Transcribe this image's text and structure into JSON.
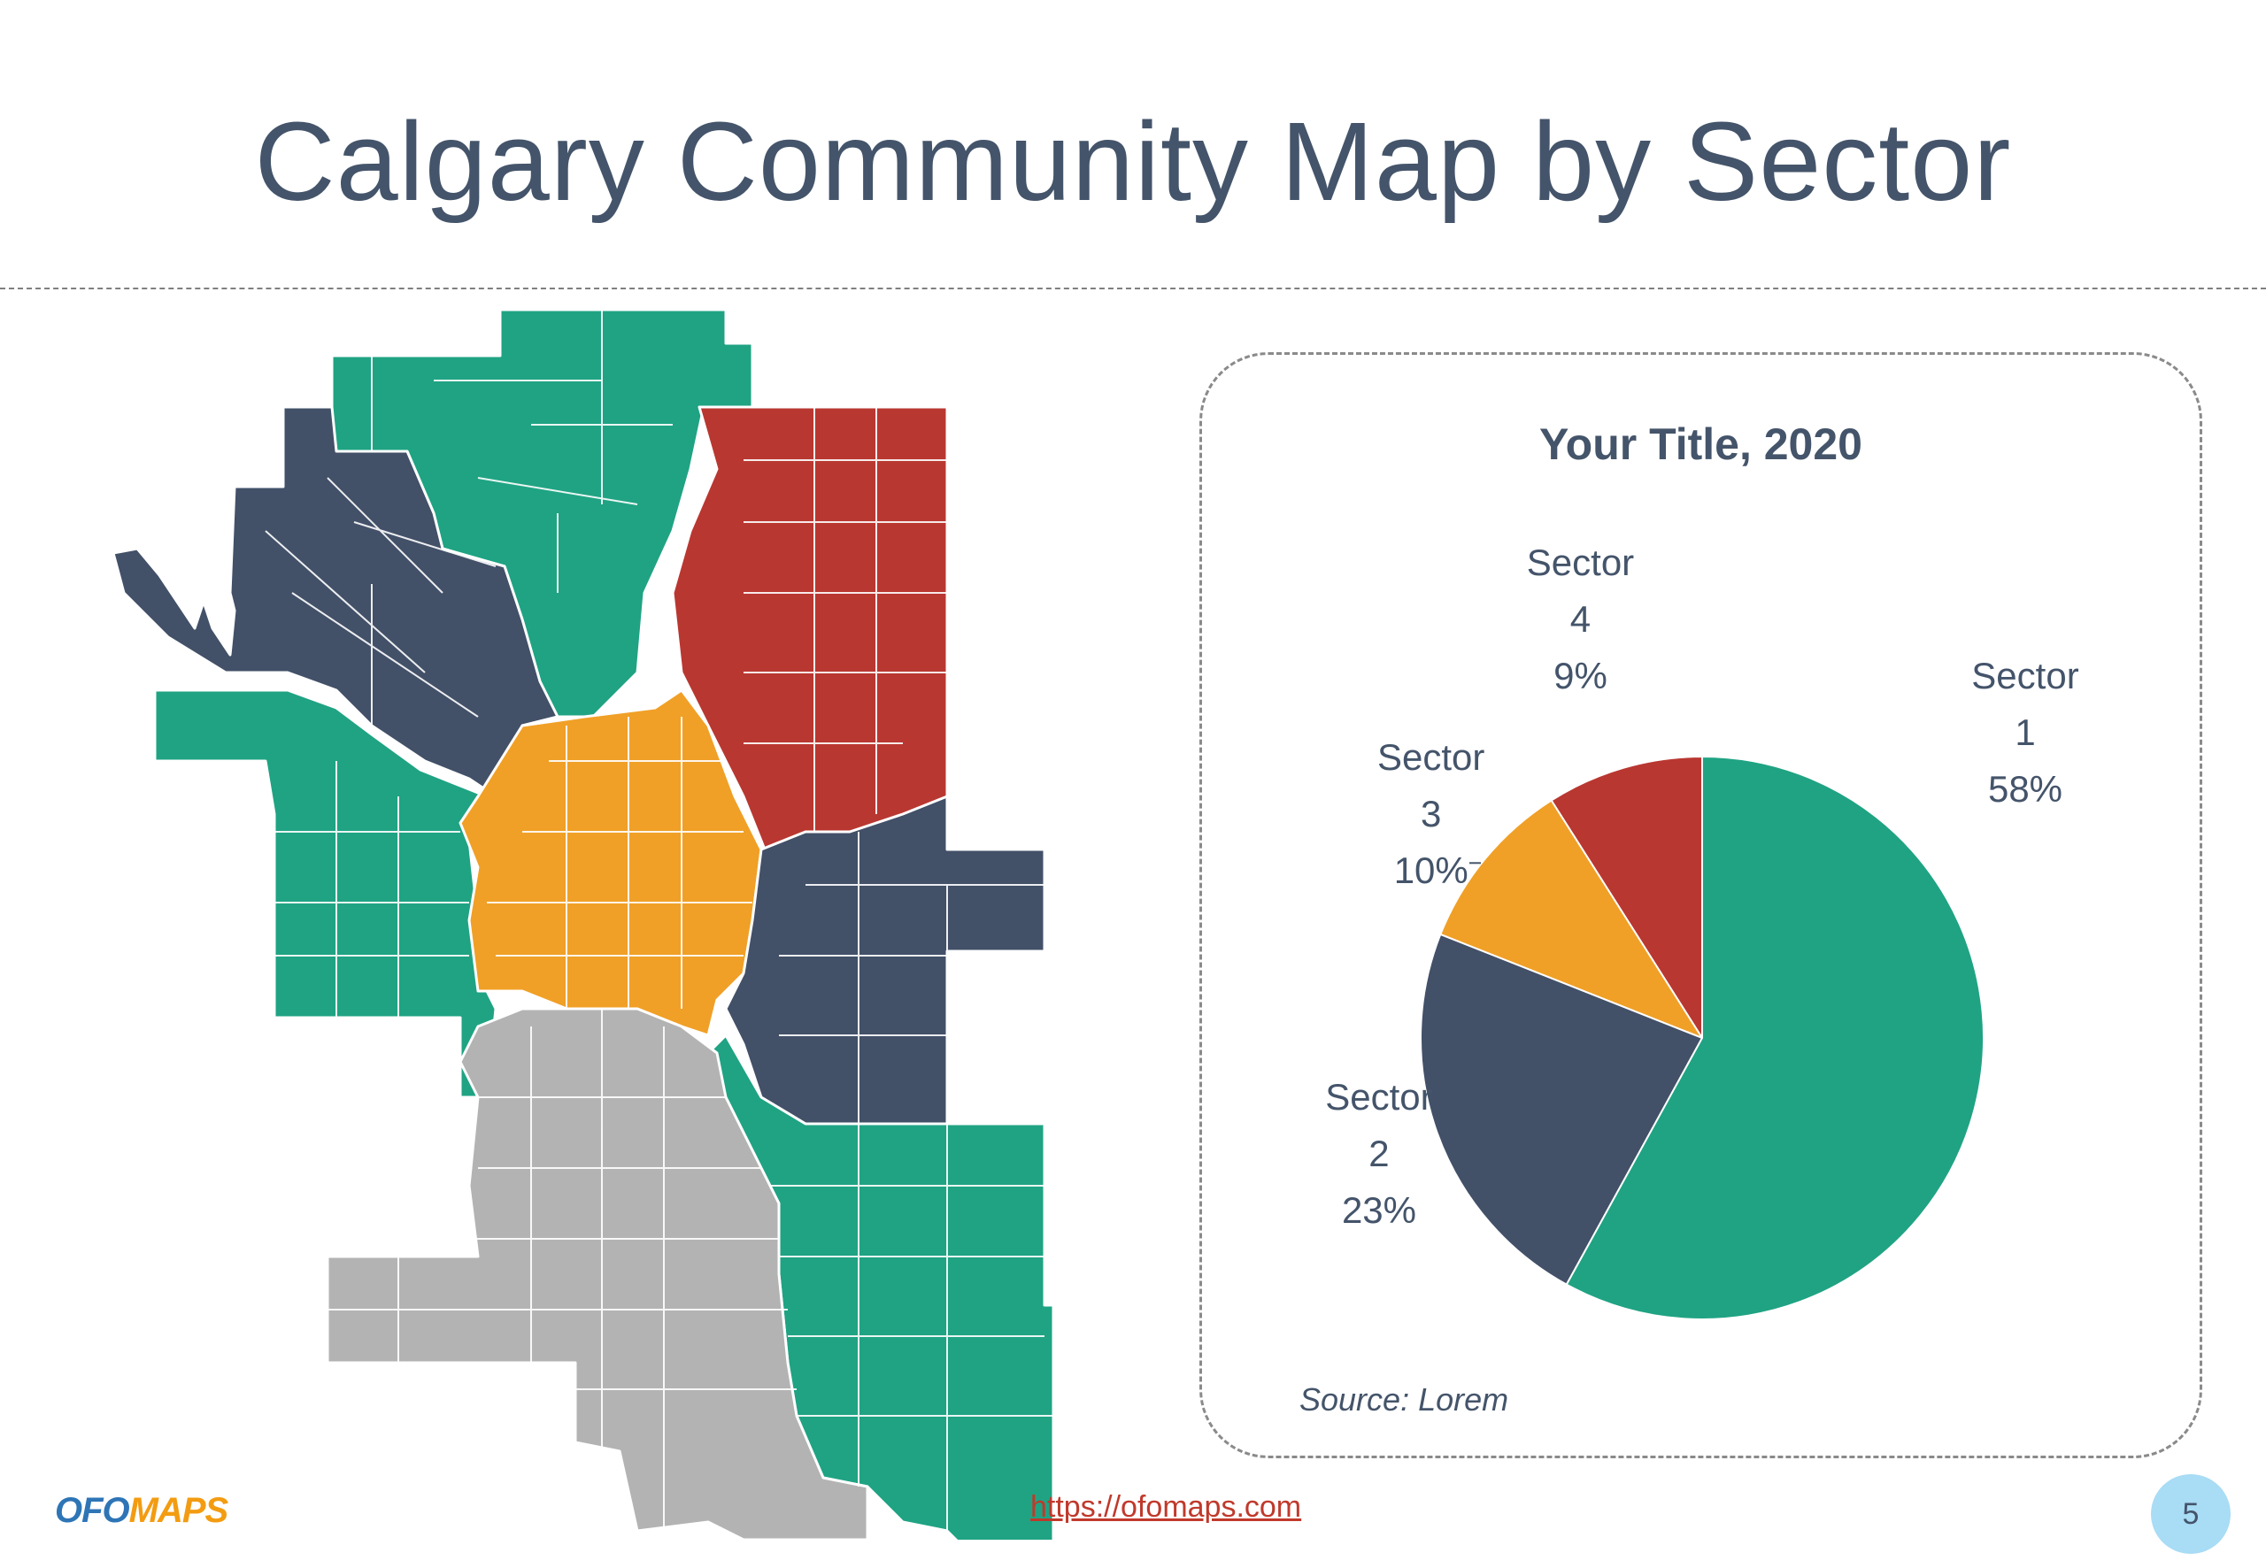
{
  "page": {
    "title": "Calgary Community Map by Sector",
    "url": "https://ofomaps.com",
    "page_number": "5",
    "logo": {
      "part1": "OFO",
      "part2": "MAPS"
    }
  },
  "colors": {
    "sector1": "#1fa383",
    "sector2": "#425068",
    "sector3": "#f0a027",
    "sector4": "#b93731",
    "south": "#b3b3b3",
    "text": "#44546a"
  },
  "map": {
    "regions": [
      {
        "name": "north-sector",
        "color": "#1fa383"
      },
      {
        "name": "northwest-sector",
        "color": "#425068"
      },
      {
        "name": "northeast-sector",
        "color": "#b93731"
      },
      {
        "name": "centre-sector",
        "color": "#f0a027"
      },
      {
        "name": "east-sector",
        "color": "#425068"
      },
      {
        "name": "west-sector",
        "color": "#1fa383"
      },
      {
        "name": "southeast-sector",
        "color": "#1fa383"
      },
      {
        "name": "south-sector",
        "color": "#b3b3b3"
      }
    ]
  },
  "chart_data": {
    "type": "pie",
    "title": "Your Title, 2020",
    "source": "Source: Lorem",
    "slices": [
      {
        "name": "Sector 1",
        "line1": "Sector",
        "line2": "1",
        "value": 58,
        "label": "58%",
        "color": "#1fa383"
      },
      {
        "name": "Sector 2",
        "line1": "Sector",
        "line2": "2",
        "value": 23,
        "label": "23%",
        "color": "#425068"
      },
      {
        "name": "Sector 3",
        "line1": "Sector",
        "line2": "3",
        "value": 10,
        "label": "10%",
        "color": "#f0a027"
      },
      {
        "name": "Sector 4",
        "line1": "Sector",
        "line2": "4",
        "value": 9,
        "label": "9%",
        "color": "#b93731"
      }
    ],
    "start_angle": "12 o'clock",
    "direction": "clockwise"
  }
}
